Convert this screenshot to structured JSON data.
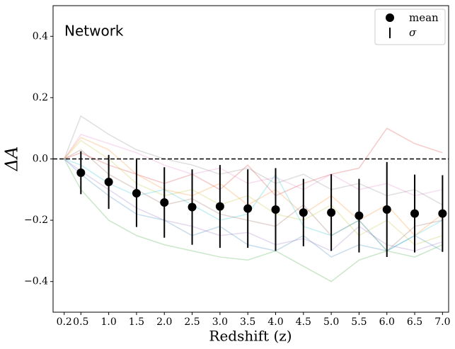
{
  "chart_data": {
    "type": "errorbar",
    "annotation": "Network",
    "xlabel": "Redshift (z)",
    "ylabel": "ΔA",
    "xlim": [
      0.0,
      7.11
    ],
    "ylim": [
      -0.5,
      0.5
    ],
    "xticks": [
      0.2,
      0.5,
      {
        "value": 1.0,
        "label": "1.0"
      },
      1.5,
      {
        "value": 2.0,
        "label": "2.0"
      },
      2.5,
      {
        "value": 3.0,
        "label": "3.0"
      },
      3.5,
      {
        "value": 4.0,
        "label": "4.0"
      },
      4.5,
      {
        "value": 5.0,
        "label": "5.0"
      },
      5.5,
      {
        "value": 6.0,
        "label": "6.0"
      },
      6.5,
      {
        "value": 7.0,
        "label": "7.0"
      }
    ],
    "yticks": [
      {
        "value": -0.4,
        "label": "−0.4"
      },
      {
        "value": -0.2,
        "label": "−0.2"
      },
      {
        "value": 0.0,
        "label": "0.0"
      },
      0.2,
      0.4
    ],
    "hline": 0,
    "legend": "upper right",
    "mean": {
      "name": "mean",
      "error_name": "σ",
      "color": "#000000",
      "x": [
        0.5,
        1.0,
        1.5,
        2.0,
        2.5,
        3.0,
        3.5,
        4.0,
        4.5,
        5.0,
        5.5,
        6.0,
        6.5,
        7.0
      ],
      "values": [
        -0.045,
        -0.075,
        -0.112,
        -0.142,
        -0.157,
        -0.155,
        -0.162,
        -0.165,
        -0.175,
        -0.175,
        -0.185,
        -0.165,
        -0.178,
        -0.178
      ],
      "errors": [
        0.07,
        0.088,
        0.11,
        0.115,
        0.123,
        0.135,
        0.128,
        0.135,
        0.11,
        0.125,
        0.12,
        0.155,
        0.127,
        0.125
      ]
    },
    "x": [
      0.2,
      0.5,
      1.0,
      1.5,
      2.0,
      2.5,
      3.0,
      3.5,
      4.0,
      4.5,
      5.0,
      5.5,
      6.0,
      6.5,
      7.0
    ],
    "series": [
      {
        "color": "#1f77b4",
        "values": [
          0,
          -0.05,
          -0.12,
          -0.18,
          -0.2,
          -0.25,
          -0.22,
          -0.28,
          -0.3,
          -0.25,
          -0.32,
          -0.28,
          -0.3,
          -0.25,
          -0.3
        ]
      },
      {
        "color": "#ff7f0e",
        "values": [
          0,
          0.07,
          0.03,
          -0.05,
          -0.1,
          -0.12,
          -0.08,
          -0.15,
          -0.1,
          -0.18,
          -0.12,
          -0.2,
          -0.15,
          -0.25,
          -0.18
        ]
      },
      {
        "color": "#2ca02c",
        "values": [
          0,
          -0.1,
          -0.2,
          -0.25,
          -0.28,
          -0.3,
          -0.32,
          -0.33,
          -0.3,
          -0.35,
          -0.4,
          -0.33,
          -0.3,
          -0.32,
          -0.28
        ]
      },
      {
        "color": "#d62728",
        "values": [
          0,
          0.02,
          -0.02,
          -0.05,
          -0.08,
          -0.05,
          -0.1,
          -0.02,
          -0.12,
          -0.08,
          -0.05,
          -0.03,
          0.1,
          0.05,
          0.02
        ]
      },
      {
        "color": "#9467bd",
        "values": [
          0,
          -0.04,
          -0.1,
          -0.16,
          -0.2,
          -0.22,
          -0.25,
          -0.24,
          -0.28,
          -0.26,
          -0.3,
          -0.22,
          -0.28,
          -0.3,
          -0.27
        ]
      },
      {
        "color": "#8c564b",
        "values": [
          0,
          0.03,
          -0.05,
          -0.1,
          -0.15,
          -0.13,
          -0.18,
          -0.2,
          -0.22,
          -0.15,
          -0.25,
          -0.2,
          -0.3,
          -0.22,
          -0.2
        ]
      },
      {
        "color": "#e377c2",
        "values": [
          0,
          0.08,
          0.05,
          0.02,
          -0.02,
          -0.05,
          -0.03,
          -0.08,
          -0.06,
          -0.1,
          -0.05,
          -0.1,
          -0.08,
          -0.12,
          -0.1
        ]
      },
      {
        "color": "#7f7f7f",
        "values": [
          0,
          0.14,
          0.08,
          0.03,
          0.0,
          -0.02,
          -0.05,
          -0.03,
          -0.08,
          -0.05,
          -0.1,
          -0.08,
          -0.12,
          -0.1,
          -0.15
        ]
      },
      {
        "color": "#bcbd22",
        "values": [
          0,
          0.06,
          0.0,
          -0.08,
          -0.12,
          -0.1,
          -0.15,
          -0.12,
          -0.18,
          -0.2,
          -0.15,
          -0.25,
          -0.2,
          -0.28,
          -0.25
        ]
      },
      {
        "color": "#17becf",
        "values": [
          0,
          -0.02,
          -0.08,
          -0.12,
          -0.1,
          -0.15,
          -0.2,
          -0.18,
          -0.05,
          -0.22,
          -0.25,
          -0.2,
          -0.3,
          -0.25,
          -0.2
        ]
      }
    ]
  }
}
